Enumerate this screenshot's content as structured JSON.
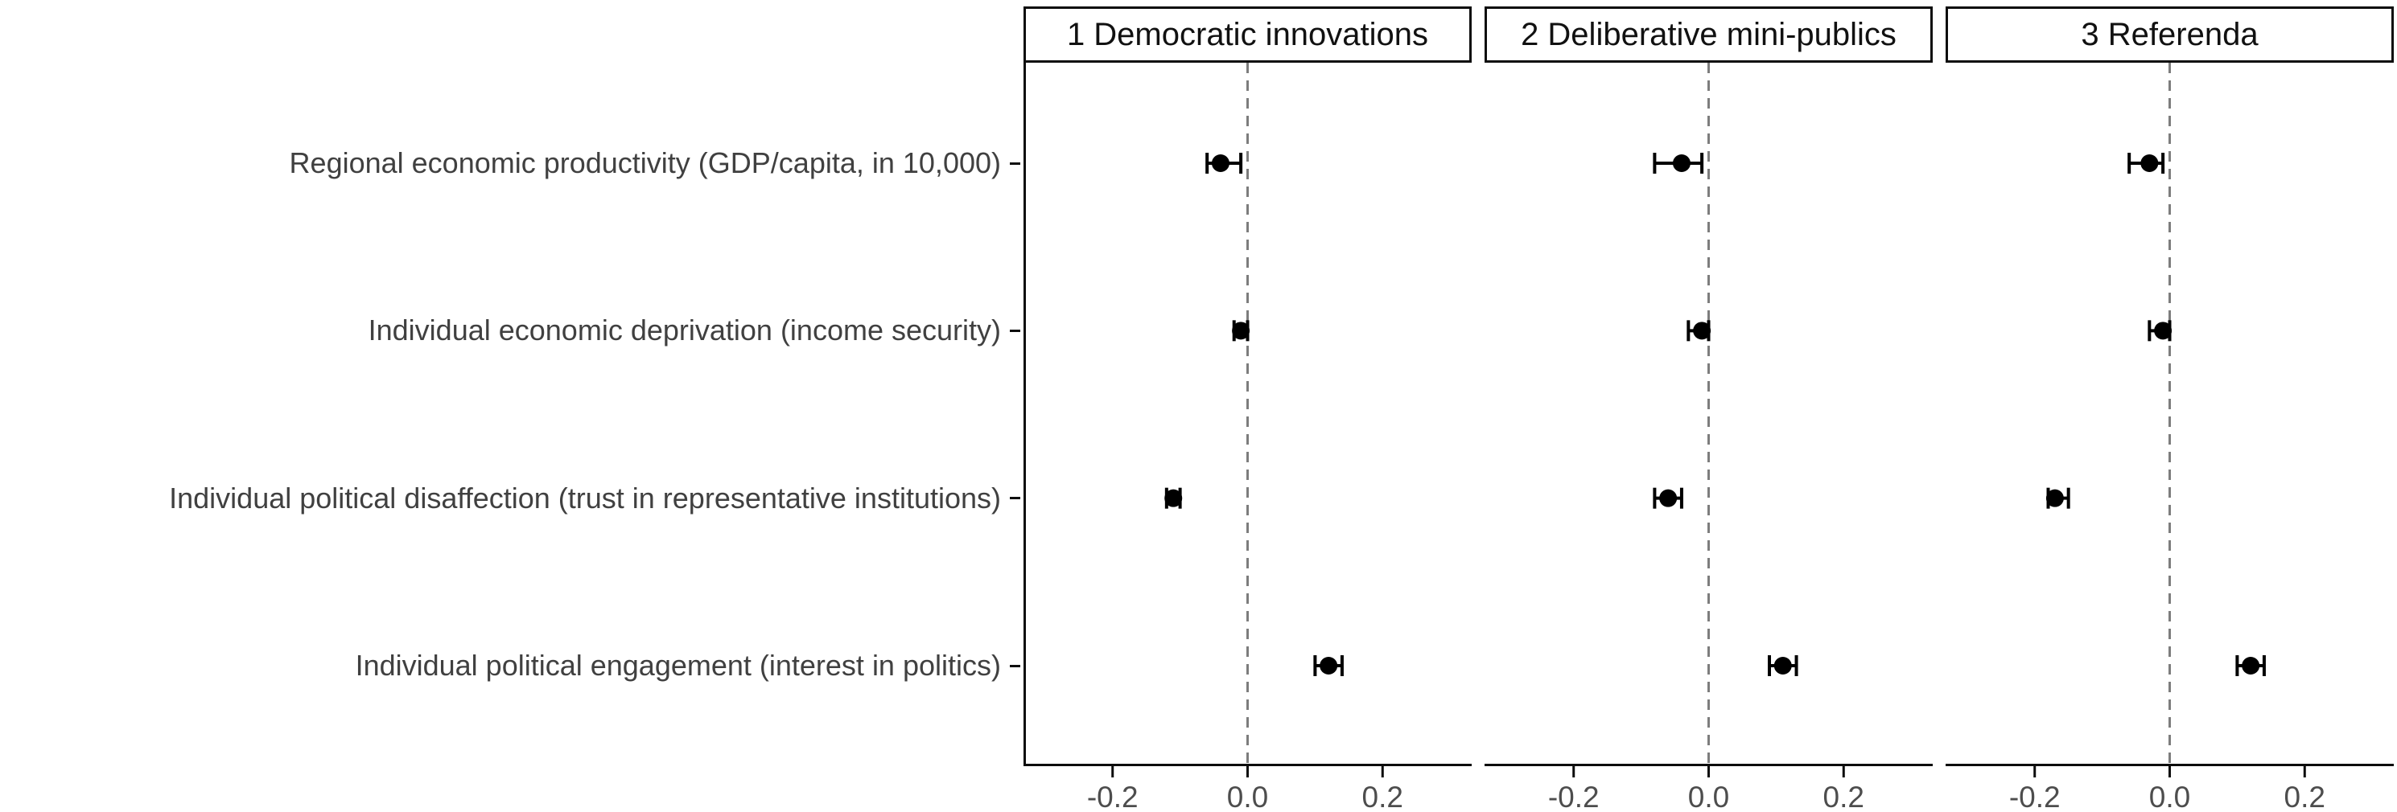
{
  "figure": {
    "background": "#ffffff"
  },
  "chart_data": {
    "type": "scatter",
    "subtype": "dot-whisker-coefficient-plot",
    "title": "",
    "xlabel": "",
    "ylabel": "",
    "grid": false,
    "legend": false,
    "categories": [
      "Regional economic productivity (GDP/capita, in 10,000)",
      "Individual economic deprivation (income security)",
      "Individual political disaffection (trust in representative institutions)",
      "Individual political engagement (interest in politics)"
    ],
    "facets": [
      {
        "label": "1 Democratic innovations",
        "estimates": [
          {
            "estimate": -0.04,
            "ci_low": -0.06,
            "ci_high": -0.01
          },
          {
            "estimate": -0.01,
            "ci_low": -0.02,
            "ci_high": 0.0
          },
          {
            "estimate": -0.11,
            "ci_low": -0.12,
            "ci_high": -0.1
          },
          {
            "estimate": 0.12,
            "ci_low": 0.1,
            "ci_high": 0.14
          }
        ]
      },
      {
        "label": "2 Deliberative mini-publics",
        "estimates": [
          {
            "estimate": -0.04,
            "ci_low": -0.08,
            "ci_high": -0.01
          },
          {
            "estimate": -0.01,
            "ci_low": -0.03,
            "ci_high": 0.0
          },
          {
            "estimate": -0.06,
            "ci_low": -0.08,
            "ci_high": -0.04
          },
          {
            "estimate": 0.11,
            "ci_low": 0.09,
            "ci_high": 0.13
          }
        ]
      },
      {
        "label": "3 Referenda",
        "estimates": [
          {
            "estimate": -0.03,
            "ci_low": -0.06,
            "ci_high": -0.01
          },
          {
            "estimate": -0.01,
            "ci_low": -0.03,
            "ci_high": 0.0
          },
          {
            "estimate": -0.17,
            "ci_low": -0.18,
            "ci_high": -0.15
          },
          {
            "estimate": 0.12,
            "ci_low": 0.1,
            "ci_high": 0.14
          }
        ]
      }
    ],
    "x_ticks": [
      {
        "value": -0.2,
        "label": "-0.2"
      },
      {
        "value": 0.0,
        "label": "0.0"
      },
      {
        "value": 0.2,
        "label": "0.2"
      }
    ],
    "xlim": [
      -0.332,
      0.332
    ],
    "reference_line": {
      "x": 0,
      "style": "dashed"
    },
    "colors": {
      "point": "#000000",
      "axis": "#0d0d0d",
      "reference_line": "#7d7d7d",
      "label_text": "#404040",
      "tick_text": "#4d4d4d",
      "strip_border": "#0d0d0d",
      "strip_text": "#111111"
    }
  }
}
